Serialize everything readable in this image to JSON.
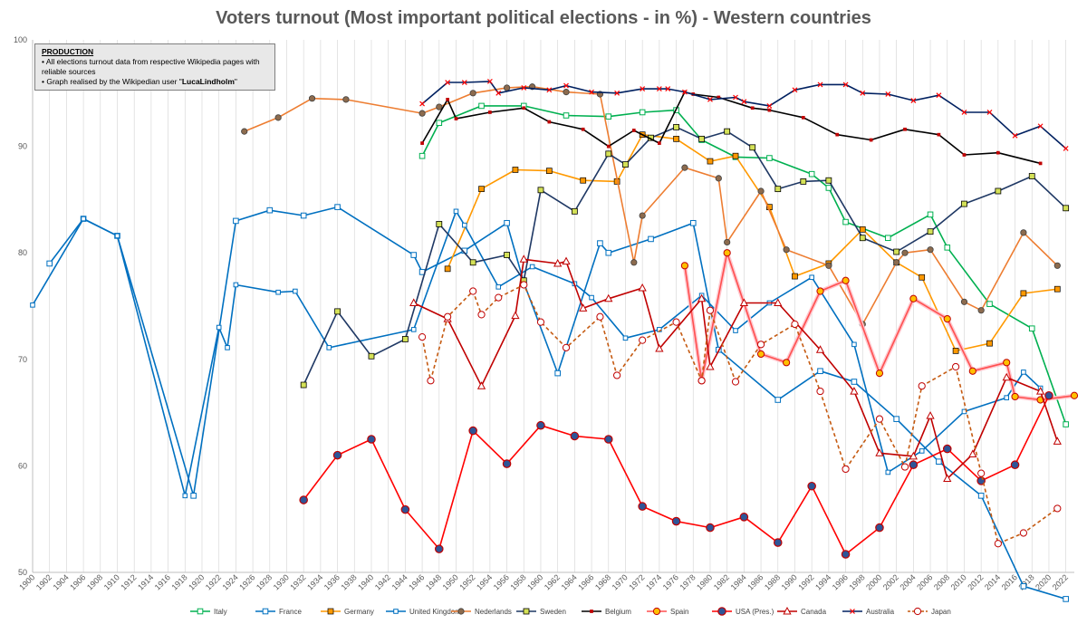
{
  "chart_data": {
    "type": "line",
    "title": "Voters turnout (Most important political elections - in %) - Western countries",
    "xlim": [
      1900,
      2023
    ],
    "ylim": [
      50,
      100
    ],
    "yticks": [
      50,
      60,
      70,
      80,
      90,
      100
    ],
    "xtick_step": 2,
    "grid": "vertical",
    "legend_position": "bottom",
    "note": {
      "heading": "PRODUCTION",
      "line1": "• All elections turnout data from respective Wikipedia pages with reliable sources",
      "line2_prefix": "• Graph realised by the Wikipedian user \"",
      "line2_user": "LucaLindholm",
      "line2_suffix": "\""
    },
    "series": [
      {
        "name": "Italy",
        "color": "#00b050",
        "marker": "square-open",
        "dash": false,
        "x": [
          1946,
          1948,
          1953,
          1958,
          1963,
          1968,
          1972,
          1976,
          1979,
          1983,
          1987,
          1992,
          1994,
          1996,
          2001,
          2006,
          2008,
          2013,
          2018,
          2022
        ],
        "y": [
          89.1,
          92.2,
          93.8,
          93.8,
          92.9,
          92.8,
          93.2,
          93.4,
          90.6,
          89.0,
          88.9,
          87.4,
          86.1,
          82.9,
          81.4,
          83.6,
          80.5,
          75.2,
          72.9,
          63.9
        ]
      },
      {
        "name": "France",
        "color": "#0070c0",
        "marker": "square-open",
        "dash": false,
        "x": [
          1902,
          1906,
          1910,
          1919,
          1924,
          1928,
          1932,
          1936,
          1945,
          1946,
          1951,
          1956,
          1958,
          1962,
          1967,
          1968,
          1973,
          1978,
          1981,
          1988,
          1993,
          1997,
          2002,
          2007,
          2012,
          2017,
          2022
        ],
        "y": [
          79.0,
          83.2,
          81.6,
          57.2,
          83.0,
          84.0,
          83.5,
          84.3,
          79.8,
          78.2,
          80.2,
          82.8,
          77.2,
          68.7,
          80.9,
          80.0,
          81.3,
          82.8,
          70.9,
          66.2,
          68.9,
          67.9,
          64.4,
          60.4,
          57.2,
          48.7,
          47.5
        ]
      },
      {
        "name": "Germany",
        "color": "#ff9900",
        "marker": "square",
        "dash": false,
        "x": [
          1949,
          1953,
          1957,
          1961,
          1965,
          1969,
          1972,
          1976,
          1980,
          1983,
          1987,
          1990,
          1994,
          1998,
          2002,
          2005,
          2009,
          2013,
          2017,
          2021
        ],
        "y": [
          78.5,
          86.0,
          87.8,
          87.7,
          86.8,
          86.7,
          91.1,
          90.7,
          88.6,
          89.1,
          84.3,
          77.8,
          79.0,
          82.2,
          79.1,
          77.7,
          70.8,
          71.5,
          76.2,
          76.6
        ]
      },
      {
        "name": "United Kingdom",
        "color": "#0070c0",
        "marker": "square-small",
        "dash": false,
        "x": [
          1900,
          1906,
          1910,
          1918,
          1922,
          1923,
          1924,
          1929,
          1931,
          1935,
          1945,
          1950,
          1951,
          1955,
          1959,
          1964,
          1966,
          1970,
          1974,
          1979,
          1983,
          1987,
          1992,
          1997,
          2001,
          2005,
          2010,
          2015,
          2017,
          2019
        ],
        "y": [
          75.1,
          83.2,
          81.6,
          57.2,
          73.0,
          71.1,
          77.0,
          76.3,
          76.4,
          71.1,
          72.8,
          83.9,
          82.6,
          76.8,
          78.7,
          77.1,
          75.8,
          72.0,
          72.8,
          76.0,
          72.7,
          75.3,
          77.7,
          71.4,
          59.4,
          61.4,
          65.1,
          66.4,
          68.8,
          67.3
        ]
      },
      {
        "name": "Nederlands",
        "color": "#ed7d31",
        "marker": "circle-brown",
        "dash": false,
        "x": [
          1925,
          1929,
          1933,
          1937,
          1946,
          1948,
          1952,
          1956,
          1959,
          1963,
          1967,
          1971,
          1972,
          1977,
          1981,
          1982,
          1986,
          1989,
          1994,
          1998,
          2002,
          2003,
          2006,
          2010,
          2012,
          2017,
          2021
        ],
        "y": [
          91.4,
          92.7,
          94.5,
          94.4,
          93.1,
          93.7,
          95.0,
          95.5,
          95.6,
          95.1,
          94.9,
          79.1,
          83.5,
          88.0,
          87.0,
          81.0,
          85.8,
          80.3,
          78.8,
          73.3,
          79.1,
          80.0,
          80.3,
          75.4,
          74.6,
          81.9,
          78.8
        ]
      },
      {
        "name": "Sweden",
        "color": "#1f3864",
        "marker": "square-yellow",
        "dash": false,
        "x": [
          1932,
          1936,
          1940,
          1944,
          1948,
          1952,
          1956,
          1958,
          1960,
          1964,
          1968,
          1970,
          1973,
          1976,
          1979,
          1982,
          1985,
          1988,
          1991,
          1994,
          1998,
          2002,
          2006,
          2010,
          2014,
          2018,
          2022
        ],
        "y": [
          67.6,
          74.5,
          70.3,
          71.9,
          82.7,
          79.1,
          79.8,
          77.4,
          85.9,
          83.9,
          89.3,
          88.3,
          90.8,
          91.8,
          90.7,
          91.4,
          89.9,
          86.0,
          86.7,
          86.8,
          81.4,
          80.1,
          82.0,
          84.6,
          85.8,
          87.2,
          84.2
        ]
      },
      {
        "name": "Belgium",
        "color": "#000000",
        "marker": "none",
        "dash": false,
        "x": [
          1946,
          1949,
          1950,
          1954,
          1958,
          1961,
          1965,
          1968,
          1971,
          1974,
          1977,
          1978,
          1981,
          1985,
          1987,
          1991,
          1995,
          1999,
          2003,
          2007,
          2010,
          2014,
          2019
        ],
        "y": [
          90.3,
          94.4,
          92.6,
          93.2,
          93.6,
          92.3,
          91.6,
          90.0,
          91.5,
          90.3,
          95.1,
          94.9,
          94.6,
          93.6,
          93.4,
          92.7,
          91.1,
          90.6,
          91.6,
          91.1,
          89.2,
          89.4,
          88.4
        ]
      },
      {
        "name": "Spain",
        "color": "#ff5050",
        "marker": "circle-orange",
        "dash": false,
        "x": [
          1977,
          1979,
          1982,
          1986,
          1989,
          1993,
          1996,
          2000,
          2004,
          2008,
          2011,
          2015,
          2016,
          2019,
          2023
        ],
        "y": [
          78.8,
          68.0,
          80.0,
          70.5,
          69.7,
          76.4,
          77.4,
          68.7,
          75.7,
          73.8,
          68.9,
          69.7,
          66.5,
          66.2,
          66.6
        ]
      },
      {
        "name": "USA (Pres.)",
        "color": "#ff0000",
        "marker": "circle-blue",
        "dash": false,
        "x": [
          1932,
          1936,
          1940,
          1944,
          1948,
          1952,
          1956,
          1960,
          1964,
          1968,
          1972,
          1976,
          1980,
          1984,
          1988,
          1992,
          1996,
          2000,
          2004,
          2008,
          2012,
          2016,
          2020
        ],
        "y": [
          56.8,
          61.0,
          62.5,
          55.9,
          52.2,
          63.3,
          60.2,
          63.8,
          62.8,
          62.5,
          56.2,
          54.8,
          54.2,
          55.2,
          52.8,
          58.1,
          51.7,
          54.2,
          60.1,
          61.6,
          58.6,
          60.1,
          66.6
        ]
      },
      {
        "name": "Canada",
        "color": "#c00000",
        "marker": "triangle",
        "dash": false,
        "x": [
          1945,
          1949,
          1953,
          1957,
          1958,
          1962,
          1963,
          1965,
          1968,
          1972,
          1974,
          1979,
          1980,
          1984,
          1988,
          1993,
          1997,
          2000,
          2004,
          2006,
          2008,
          2011,
          2015,
          2019,
          2021
        ],
        "y": [
          75.3,
          73.8,
          67.5,
          74.1,
          79.4,
          79.0,
          79.2,
          74.8,
          75.7,
          76.7,
          71.0,
          75.7,
          69.3,
          75.3,
          75.3,
          70.9,
          67.0,
          61.2,
          60.9,
          64.7,
          58.8,
          61.1,
          68.3,
          67.0,
          62.3
        ]
      },
      {
        "name": "Australia",
        "color": "#002060",
        "marker": "x",
        "dash": false,
        "x": [
          1946,
          1949,
          1951,
          1954,
          1955,
          1958,
          1961,
          1963,
          1966,
          1969,
          1972,
          1974,
          1975,
          1977,
          1980,
          1983,
          1984,
          1987,
          1990,
          1993,
          1996,
          1998,
          2001,
          2004,
          2007,
          2010,
          2013,
          2016,
          2019,
          2022
        ],
        "y": [
          94.0,
          96.0,
          96.0,
          96.1,
          95.0,
          95.5,
          95.3,
          95.7,
          95.1,
          95.0,
          95.4,
          95.4,
          95.4,
          95.1,
          94.4,
          94.6,
          94.2,
          93.8,
          95.3,
          95.8,
          95.8,
          95.0,
          94.9,
          94.3,
          94.8,
          93.2,
          93.2,
          91.0,
          91.9,
          89.8
        ]
      },
      {
        "name": "Japan",
        "color": "#c55a11",
        "marker": "circle-open",
        "dash": true,
        "x": [
          1946,
          1947,
          1949,
          1952,
          1953,
          1955,
          1958,
          1960,
          1963,
          1967,
          1969,
          1972,
          1976,
          1979,
          1980,
          1983,
          1986,
          1990,
          1993,
          1996,
          2000,
          2003,
          2005,
          2009,
          2012,
          2014,
          2017,
          2021
        ],
        "y": [
          72.1,
          68.0,
          74.0,
          76.4,
          74.2,
          75.8,
          77.0,
          73.5,
          71.1,
          74.0,
          68.5,
          71.8,
          73.5,
          68.0,
          74.6,
          67.9,
          71.4,
          73.3,
          67.0,
          59.7,
          64.4,
          59.9,
          67.5,
          69.3,
          59.3,
          52.7,
          53.7,
          56.0
        ]
      }
    ]
  }
}
